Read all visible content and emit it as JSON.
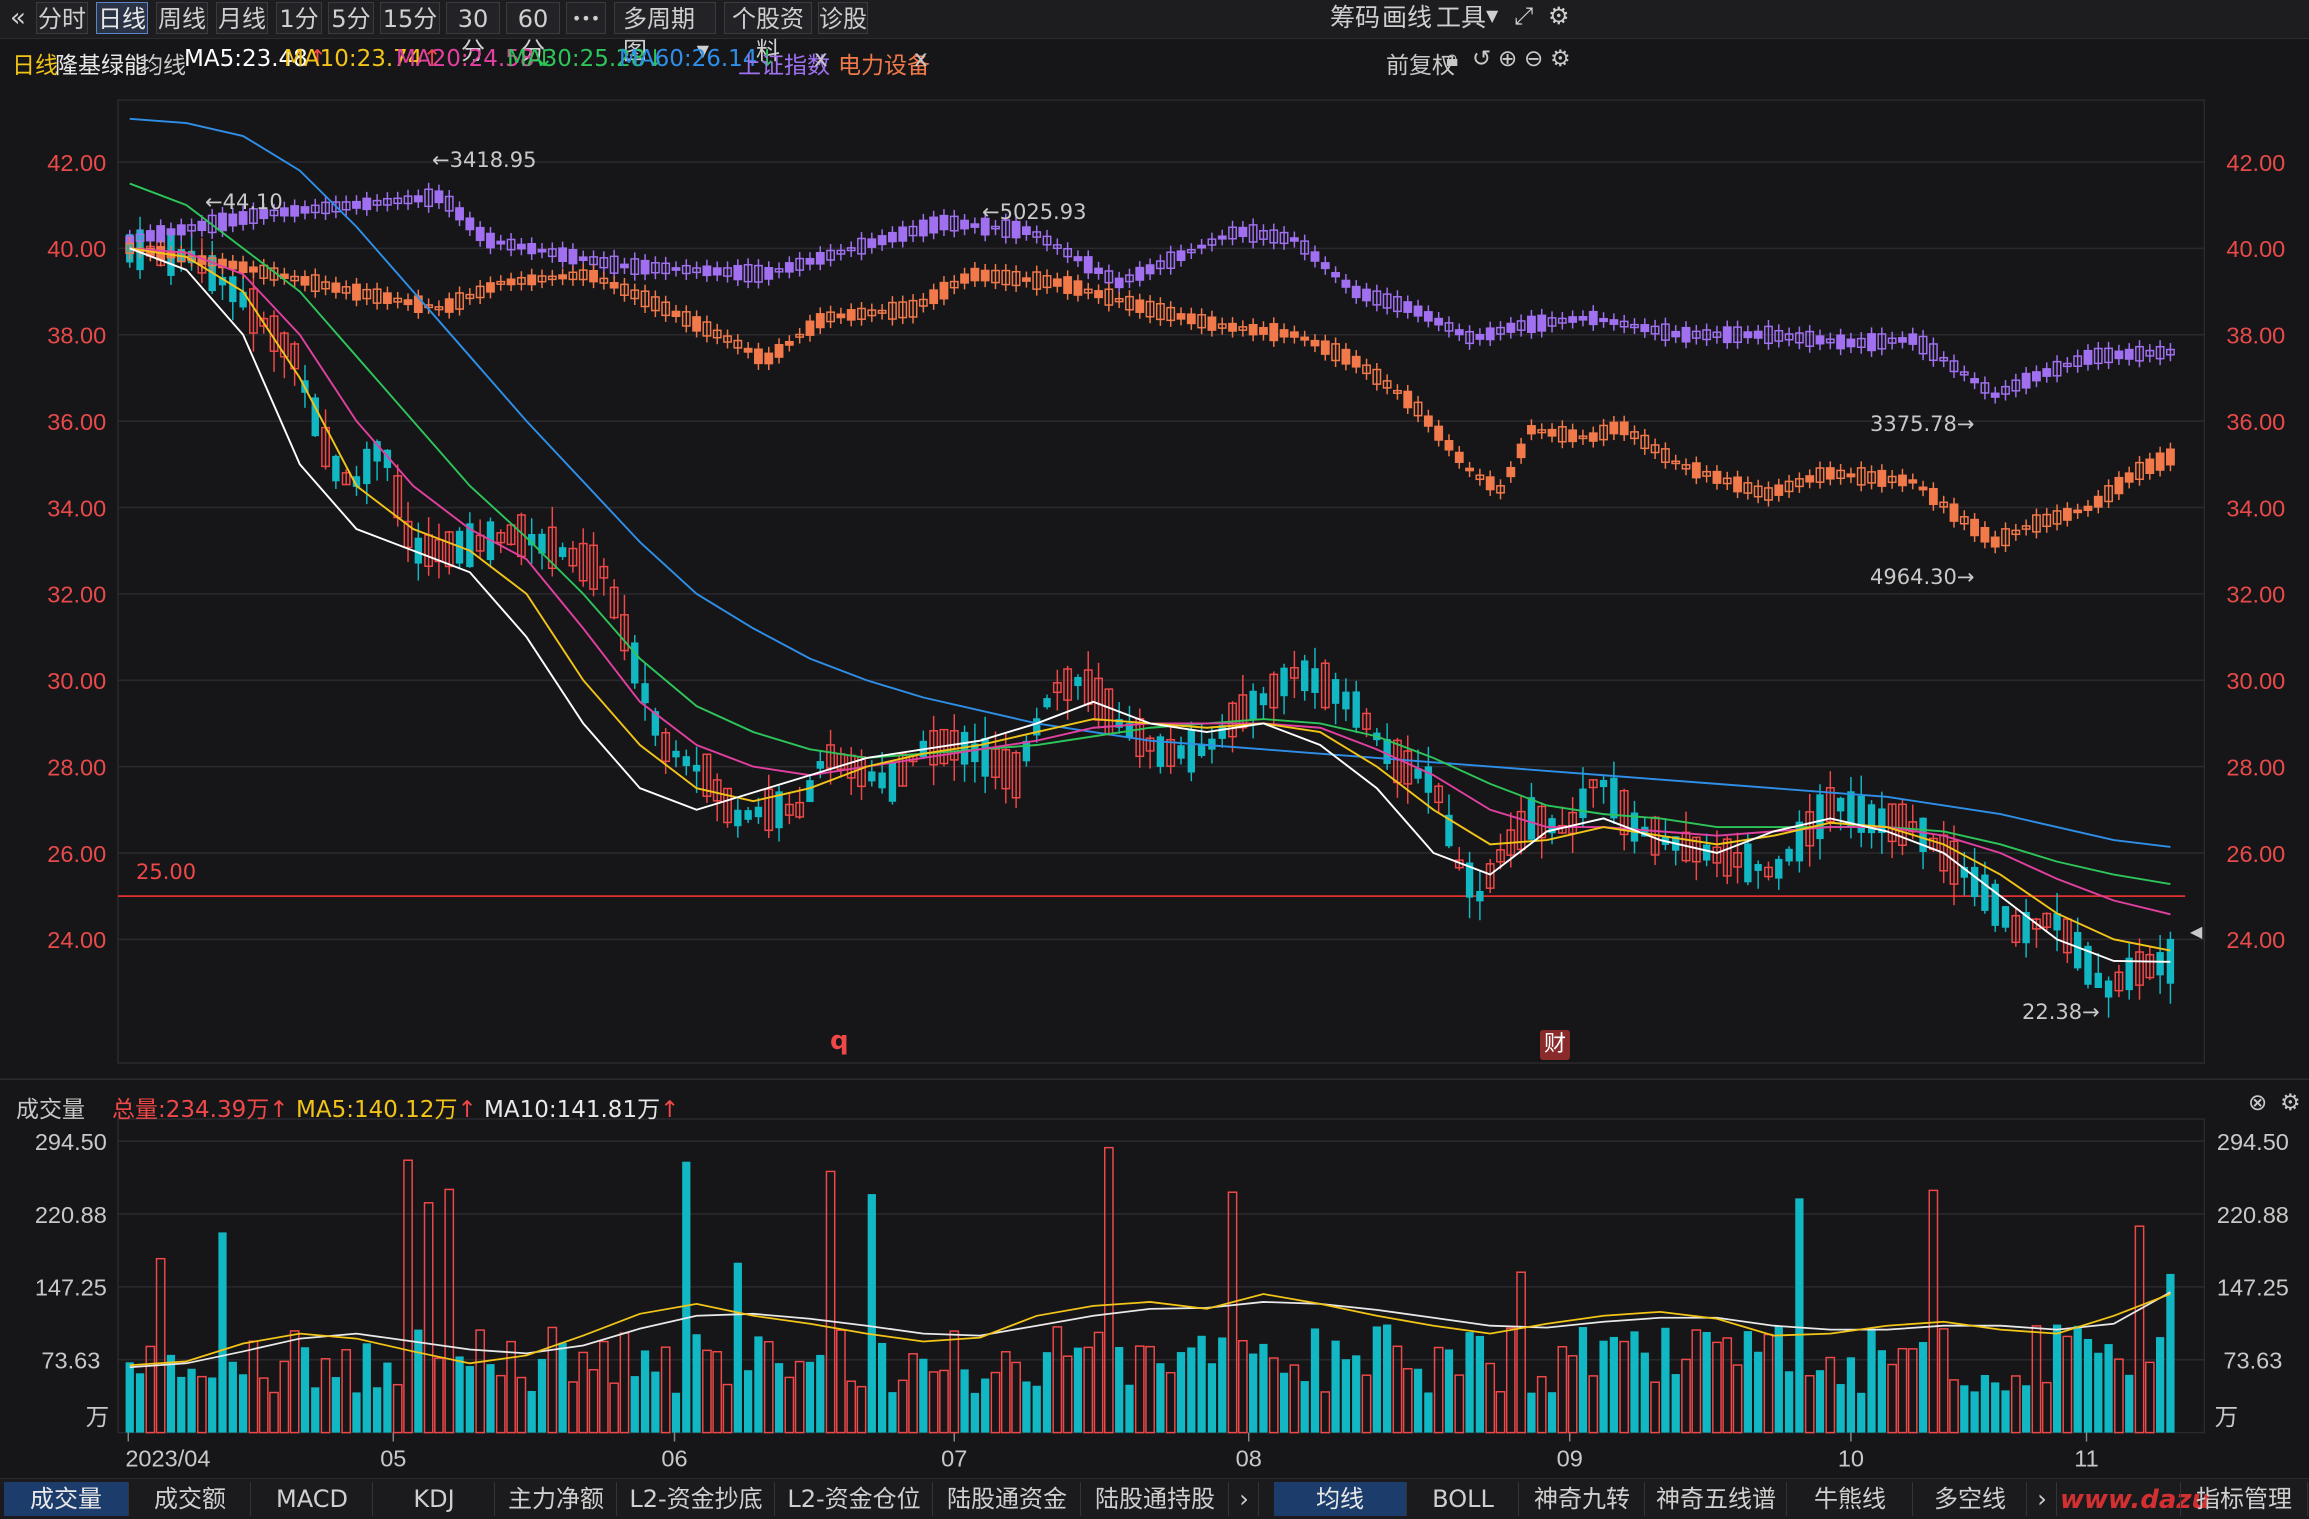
{
  "toolbar": {
    "back_icon": "«",
    "periods": [
      "分时",
      "日线",
      "周线",
      "月线",
      "1分",
      "5分",
      "15分",
      "30分",
      "60分"
    ],
    "active_period": "日线",
    "more_label": "•••",
    "multi_period": "多周期图",
    "stock_info": "个股资料",
    "diagnose": "诊股",
    "right": [
      "筹码",
      "画线",
      "工具"
    ]
  },
  "legend": {
    "period": "日线",
    "stock": "隆基绿能",
    "ma_title": "均线",
    "ma5": "MA5:23.48",
    "ma10": "MA10:23.74",
    "ma20": "MA20:24.58",
    "ma30": "MA30:25.28",
    "ma60": "MA60:26.14",
    "index1": "上证指数",
    "index2": "电力设备",
    "close_x": "x",
    "adjust": "前复权"
  },
  "price_axis": {
    "labels": [
      "42.00",
      "40.00",
      "38.00",
      "36.00",
      "34.00",
      "32.00",
      "30.00",
      "28.00",
      "26.00",
      "24.00"
    ]
  },
  "annotations": {
    "max_price": "44.10",
    "max_index": "3418.95",
    "max_sector": "5025.93",
    "min_index": "3375.78",
    "min_sector": "4964.30",
    "min_price": "22.38",
    "line_value": "25.00",
    "marker_q": "q",
    "marker_cai": "财"
  },
  "volume": {
    "title": "成交量",
    "total": "总量:234.39万",
    "ma5": "MA5:140.12万",
    "ma10": "MA10:141.81万",
    "axis": [
      "294.50",
      "220.88",
      "147.25",
      "73.63"
    ],
    "unit": "万"
  },
  "date_axis": [
    "2023/04",
    "05",
    "06",
    "07",
    "08",
    "09",
    "10",
    "11"
  ],
  "bottom_tabs_left": [
    "成交量",
    "成交额",
    "MACD",
    "KDJ",
    "主力净额",
    "L2-资金抄底",
    "L2-资金仓位",
    "陆股通资金",
    "陆股通持股"
  ],
  "bottom_tabs_right": [
    "均线",
    "BOLL",
    "神奇九转",
    "神奇五线谱",
    "牛熊线",
    "多空线"
  ],
  "indicator_manage": "指标管理",
  "watermark": "www.dazu",
  "colors": {
    "up": "#f04848",
    "down": "#11b8c4",
    "ma5": "#ffffff",
    "ma10": "#f2c418",
    "ma20": "#e040a0",
    "ma30": "#2ec45a",
    "ma60": "#2f8fe8",
    "index": "#a070f0",
    "sector": "#f27a4a"
  },
  "chart_data": {
    "type": "candlestick",
    "title": "隆基绿能 日线",
    "ylim": [
      22,
      43
    ],
    "price_ma": {
      "MA5": [
        40.0,
        39.5,
        38.0,
        35.0,
        33.5,
        33.0,
        32.5,
        31.0,
        29.0,
        27.5,
        27.0,
        27.4,
        27.8,
        28.2,
        28.4,
        28.6,
        29.0,
        29.5,
        29.0,
        28.8,
        29.0,
        28.5,
        27.5,
        26.0,
        25.5,
        26.5,
        26.8,
        26.3,
        26.0,
        26.5,
        26.8,
        26.5,
        26.0,
        25.0,
        24.0,
        23.5,
        23.48
      ],
      "MA10": [
        40.0,
        39.8,
        39.0,
        37.0,
        34.5,
        33.5,
        33.0,
        32.0,
        30.0,
        28.5,
        27.5,
        27.2,
        27.5,
        28.0,
        28.3,
        28.5,
        28.8,
        29.1,
        29.0,
        28.9,
        29.0,
        28.8,
        28.0,
        27.0,
        26.2,
        26.3,
        26.6,
        26.4,
        26.2,
        26.4,
        26.7,
        26.6,
        26.2,
        25.5,
        24.6,
        24.0,
        23.74
      ],
      "MA20": [
        40.0,
        39.9,
        39.4,
        38.0,
        36.0,
        34.5,
        33.5,
        32.8,
        31.2,
        29.5,
        28.5,
        28.0,
        27.8,
        28.0,
        28.2,
        28.4,
        28.6,
        28.9,
        29.0,
        29.0,
        29.0,
        28.9,
        28.4,
        27.8,
        27.0,
        26.6,
        26.6,
        26.5,
        26.4,
        26.5,
        26.6,
        26.6,
        26.4,
        26.0,
        25.4,
        24.9,
        24.58
      ],
      "MA30": [
        41.5,
        41.0,
        40.0,
        39.0,
        37.5,
        36.0,
        34.5,
        33.3,
        32.0,
        30.5,
        29.4,
        28.8,
        28.4,
        28.2,
        28.3,
        28.4,
        28.5,
        28.7,
        28.9,
        29.0,
        29.1,
        29.0,
        28.7,
        28.2,
        27.6,
        27.1,
        26.9,
        26.8,
        26.6,
        26.6,
        26.6,
        26.6,
        26.5,
        26.2,
        25.8,
        25.5,
        25.28
      ],
      "MA60": [
        43.0,
        42.9,
        42.6,
        41.8,
        40.5,
        39.0,
        37.5,
        36.0,
        34.6,
        33.2,
        32.0,
        31.2,
        30.5,
        30.0,
        29.6,
        29.3,
        29.0,
        28.8,
        28.6,
        28.5,
        28.4,
        28.3,
        28.2,
        28.1,
        28.0,
        27.9,
        27.8,
        27.7,
        27.6,
        27.5,
        27.4,
        27.3,
        27.1,
        26.9,
        26.6,
        26.3,
        26.14
      ]
    },
    "reference_line": 25.0,
    "volume_ma": {
      "MA5": [
        68,
        72,
        90,
        100,
        95,
        82,
        70,
        78,
        98,
        120,
        130,
        118,
        110,
        100,
        92,
        96,
        118,
        128,
        132,
        125,
        140,
        130,
        118,
        108,
        100,
        110,
        118,
        122,
        115,
        98,
        100,
        108,
        112,
        104,
        100,
        118,
        140.12
      ],
      "MA10": [
        66,
        70,
        82,
        95,
        100,
        92,
        84,
        80,
        88,
        105,
        118,
        120,
        115,
        108,
        100,
        98,
        108,
        118,
        125,
        126,
        132,
        130,
        124,
        116,
        108,
        106,
        112,
        116,
        116,
        108,
        104,
        104,
        108,
        108,
        104,
        110,
        141.81
      ]
    },
    "volume_ylim": [
      0,
      294.5
    ]
  }
}
